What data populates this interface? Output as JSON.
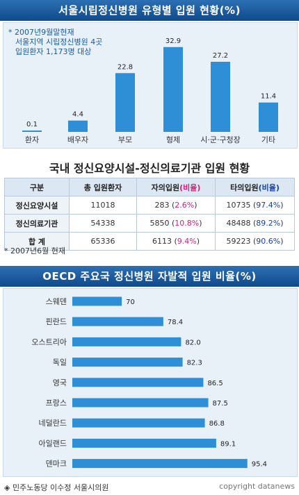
{
  "section1": {
    "title": "서울시립정신병원 유형별 입원 현황(%)",
    "notes": [
      "* 2007년9월말현재",
      "서울지역 시립정신병원 4곳",
      "입원환자 1,173명 대상"
    ]
  },
  "section2": {
    "title": "국내 정신요양시설-정신의료기관 입원 현황",
    "headers": [
      "구분",
      "총 입원환자",
      "자의입원",
      "(비율)",
      "타의입원",
      "(비율)"
    ],
    "rows": [
      {
        "label": "정신요양시설",
        "total": "11018",
        "self": "283",
        "self_pct": "2.6%",
        "other": "10735",
        "other_pct": "97.4%"
      },
      {
        "label": "정신의료기관",
        "total": "54338",
        "self": "5850",
        "self_pct": "10.8%",
        "other": "48488",
        "other_pct": "89.2%"
      },
      {
        "label": "합 계",
        "total": "65336",
        "self": "6113",
        "self_pct": "9.4%",
        "other": "59223",
        "other_pct": "90.6%"
      }
    ],
    "note": "* 2007년6월 현재"
  },
  "section3": {
    "title": "OECD 주요국 정신병원 자발적 입원 비율(%)"
  },
  "footer": {
    "source": "◈ 민주노동당 이수정 서울시의원",
    "copyright": "copyright datanews"
  },
  "colors": {
    "banner": "#1a5aa0",
    "bar": "#2f8fd6",
    "panel": "#e9f1f8",
    "pink": "#d6207a",
    "blue": "#1840a8"
  },
  "chart_data": [
    {
      "type": "bar",
      "title": "서울시립정신병원 유형별 입원 현황(%)",
      "categories": [
        "환자",
        "배우자",
        "부모",
        "형제",
        "시·군·구청장",
        "기타"
      ],
      "values": [
        0.1,
        4.4,
        22.8,
        32.9,
        27.2,
        11.4
      ],
      "value_labels": [
        "0.1",
        "4.4",
        "22.8",
        "32.9",
        "27.2",
        "11.4"
      ],
      "orientation": "vertical",
      "ylim": [
        0,
        35
      ],
      "grid": false
    },
    {
      "type": "bar",
      "title": "OECD 주요국 정신병원 자발적 입원 비율(%)",
      "categories": [
        "스웨덴",
        "핀란드",
        "오스트리아",
        "독일",
        "영국",
        "프랑스",
        "네덜란드",
        "아일랜드",
        "덴마크"
      ],
      "values": [
        70,
        78.4,
        82.0,
        82.3,
        86.5,
        87.5,
        86.8,
        89.1,
        95.4
      ],
      "value_labels": [
        "70",
        "78.4",
        "82.0",
        "82.3",
        "86.5",
        "87.5",
        "86.8",
        "89.1",
        "95.4"
      ],
      "orientation": "horizontal",
      "xlim": [
        60,
        96
      ],
      "grid": false
    }
  ]
}
